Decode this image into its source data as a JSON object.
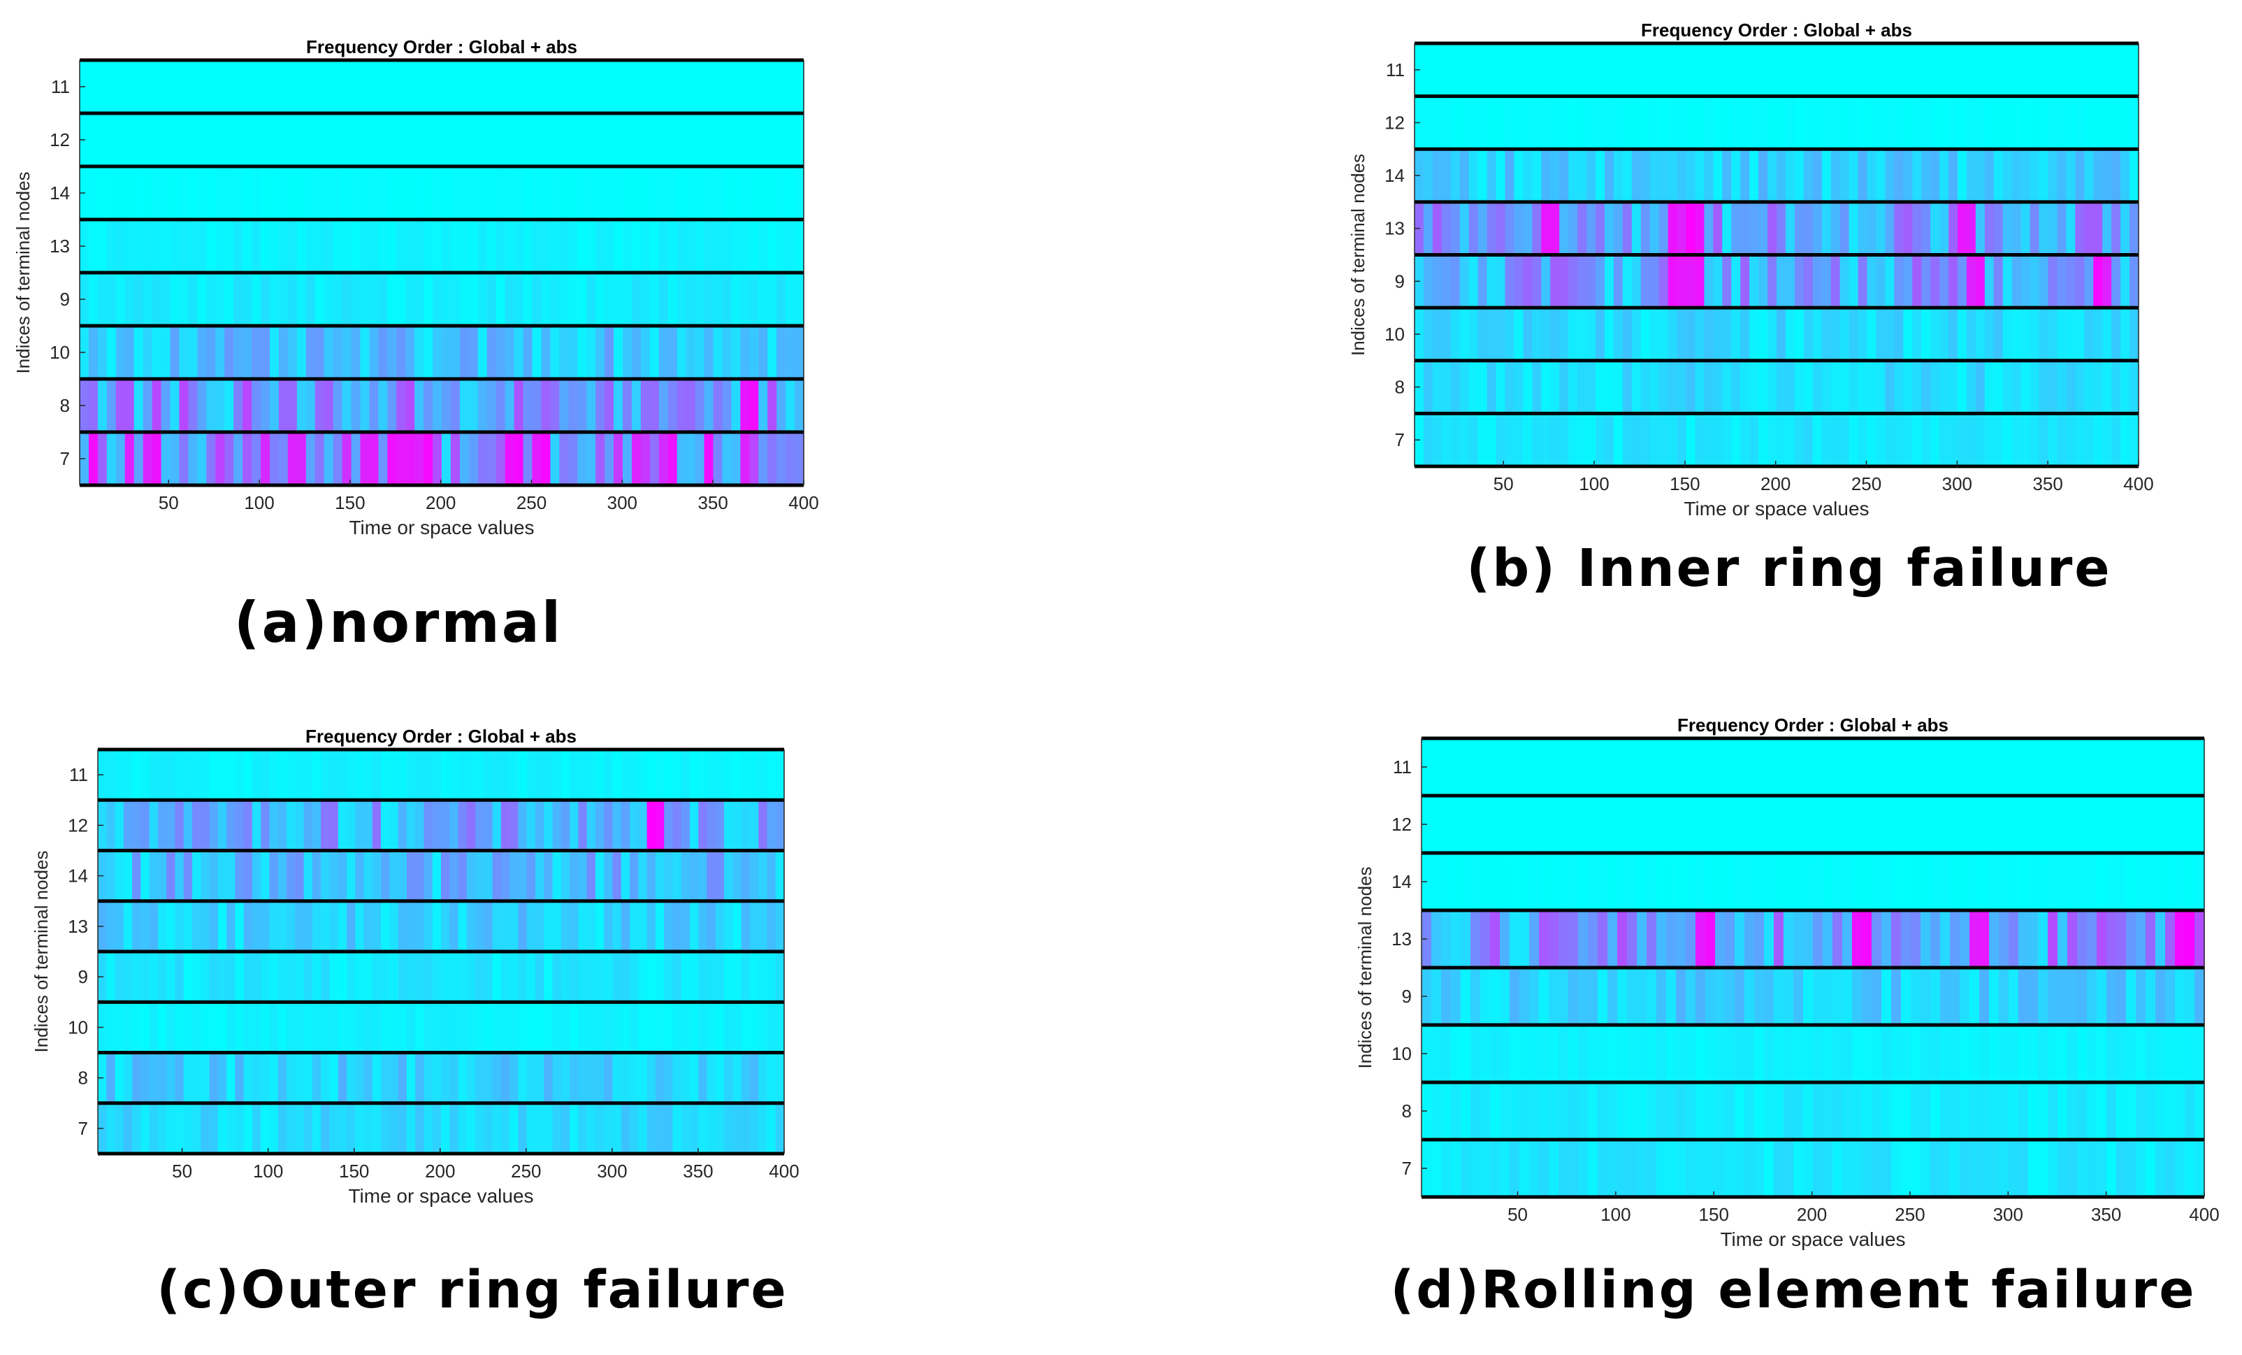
{
  "colormap": {
    "low": "#00ffff",
    "high": "#ff00ff"
  },
  "chart_data": [
    {
      "type": "heatmap",
      "title": "Frequency Order : Global + abs",
      "xlabel": "Time or space values",
      "ylabel": "Indices of terminal nodes",
      "caption": "(a)normal",
      "xlim": [
        1,
        400
      ],
      "xticks": [
        "50",
        "100",
        "150",
        "200",
        "250",
        "300",
        "350",
        "400"
      ],
      "rows": [
        "11",
        "12",
        "14",
        "13",
        "9",
        "10",
        "8",
        "7"
      ],
      "intensity": [
        0,
        0,
        0.02,
        0.05,
        0.08,
        0.25,
        0.45,
        0.6
      ],
      "peaks": [
        [],
        [],
        [],
        [],
        [],
        [],
        [
          370
        ],
        [
          120,
          190,
          240,
          255
        ]
      ]
    },
    {
      "type": "heatmap",
      "title": "Frequency Order : Global + abs",
      "xlabel": "Time or space values",
      "ylabel": "Indices of terminal nodes",
      "caption": "(b) Inner ring failure",
      "xlim": [
        1,
        400
      ],
      "xticks": [
        "50",
        "100",
        "150",
        "200",
        "250",
        "300",
        "350",
        "400"
      ],
      "rows": [
        "11",
        "12",
        "14",
        "13",
        "9",
        "10",
        "8",
        "7"
      ],
      "intensity": [
        0,
        0.02,
        0.2,
        0.4,
        0.4,
        0.15,
        0.15,
        0.1
      ],
      "peaks": [
        [],
        [],
        [],
        [
          75,
          145,
          150,
          155,
          305
        ],
        [
          145,
          150,
          155,
          310,
          380
        ],
        [],
        [],
        []
      ]
    },
    {
      "type": "heatmap",
      "title": "Frequency Order : Global + abs",
      "xlabel": "Time or space values",
      "ylabel": "Indices of terminal nodes",
      "caption": "(c)Outer ring failure",
      "xlim": [
        1,
        400
      ],
      "xticks": [
        "50",
        "100",
        "150",
        "200",
        "250",
        "300",
        "350",
        "400"
      ],
      "rows": [
        "11",
        "12",
        "14",
        "13",
        "9",
        "10",
        "8",
        "7"
      ],
      "intensity": [
        0.05,
        0.35,
        0.3,
        0.2,
        0.1,
        0.05,
        0.2,
        0.15
      ],
      "peaks": [
        [],
        [
          325
        ],
        [],
        [],
        [],
        [],
        [],
        []
      ]
    },
    {
      "type": "heatmap",
      "title": "Frequency Order : Global + abs",
      "xlabel": "Time or space values",
      "ylabel": "Indices of terminal nodes",
      "caption": "(d)Rolling element failure",
      "xlim": [
        1,
        400
      ],
      "xticks": [
        "50",
        "100",
        "150",
        "200",
        "250",
        "300",
        "350",
        "400"
      ],
      "rows": [
        "11",
        "12",
        "14",
        "13",
        "9",
        "10",
        "8",
        "7"
      ],
      "intensity": [
        0,
        0,
        0.02,
        0.45,
        0.2,
        0.05,
        0.08,
        0.1
      ],
      "peaks": [
        [],
        [],
        [],
        [
          145,
          225,
          285,
          390
        ],
        [],
        [],
        [],
        []
      ]
    }
  ]
}
